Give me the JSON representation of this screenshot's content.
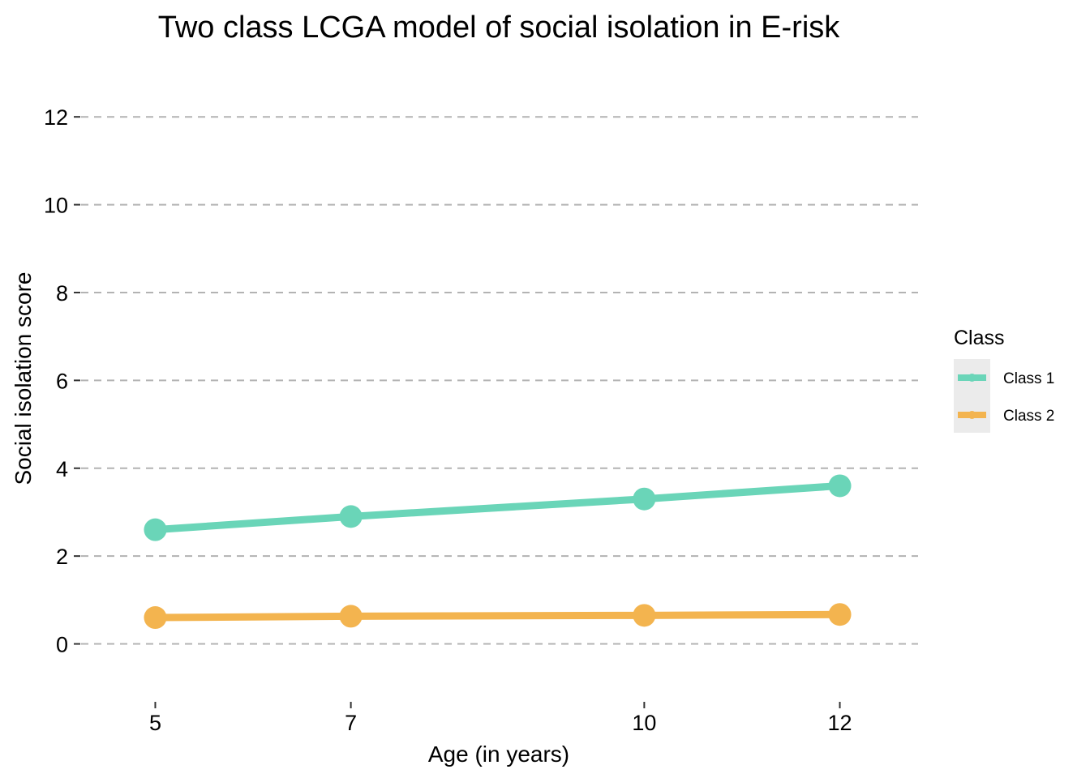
{
  "chart_data": {
    "type": "line",
    "title": "Two class LCGA model of social isolation in E-risk",
    "xlabel": "Age (in years)",
    "ylabel": "Social isolation score",
    "x": [
      5,
      7,
      10,
      12
    ],
    "x_tick_labels": [
      "5",
      "7",
      "10",
      "12"
    ],
    "y_ticks": [
      0,
      2,
      4,
      6,
      8,
      10,
      12
    ],
    "y_tick_labels": [
      "0",
      "2",
      "4",
      "6",
      "8",
      "10",
      "12"
    ],
    "xlim": [
      4.2,
      12.8
    ],
    "ylim": [
      -1.3,
      13.0
    ],
    "grid": "horizontal dashed",
    "legend": {
      "title": "Class",
      "position": "right"
    },
    "series": [
      {
        "name": "Class 1",
        "color": "#6AD5B8",
        "values": [
          2.6,
          2.9,
          3.3,
          3.6
        ]
      },
      {
        "name": "Class 2",
        "color": "#F3B44F",
        "values": [
          0.6,
          0.63,
          0.65,
          0.67
        ]
      }
    ]
  }
}
